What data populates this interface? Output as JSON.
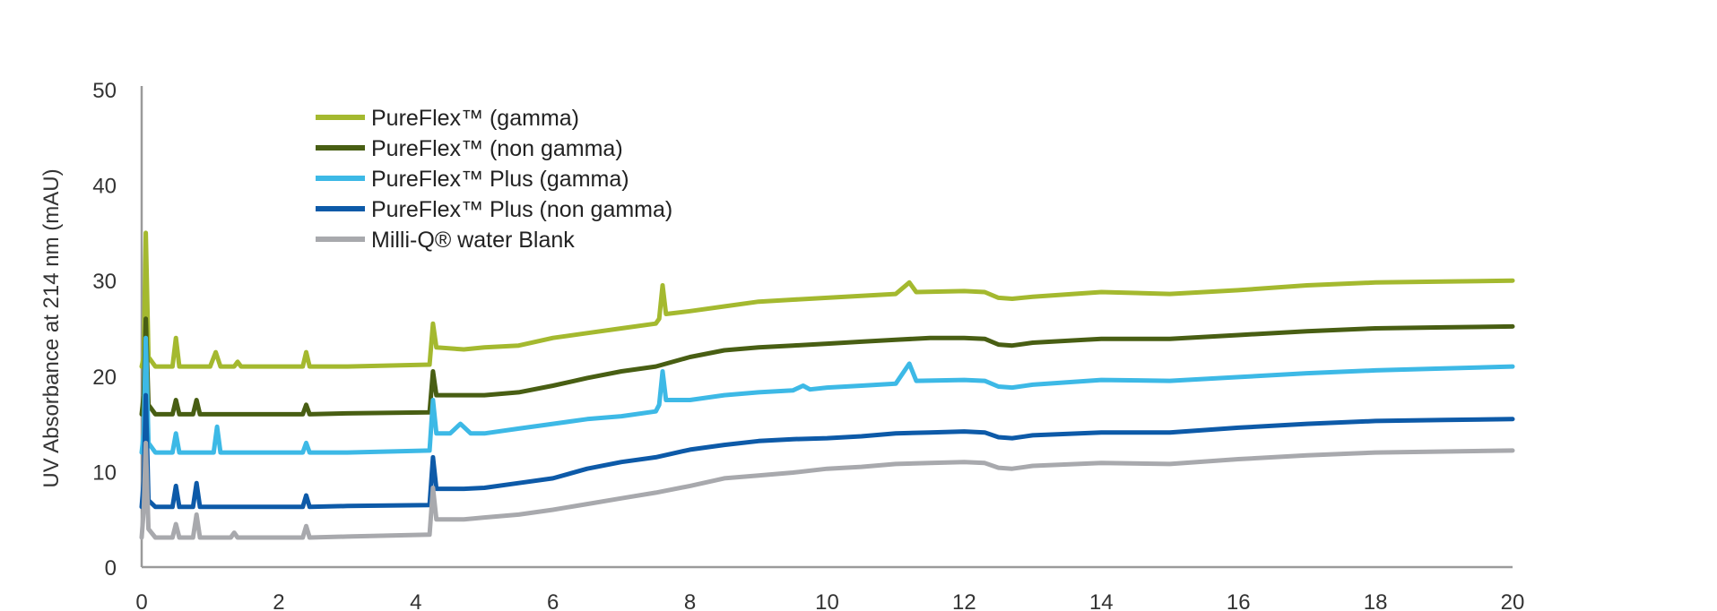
{
  "chart_data": {
    "type": "line",
    "title": "",
    "xlabel": "",
    "ylabel": "UV Absorbance at 214 nm (mAU)",
    "xlim": [
      0,
      20
    ],
    "ylim": [
      0,
      50
    ],
    "x_ticks": [
      "0",
      "2",
      "4",
      "6",
      "8",
      "10",
      "12",
      "14",
      "16",
      "18",
      "20"
    ],
    "y_ticks": [
      "0",
      "10",
      "20",
      "30",
      "40",
      "50"
    ],
    "grid": false,
    "legend_position": "top-left",
    "series": [
      {
        "name": "PureFlex™ (gamma)",
        "color": "#a4b92f",
        "points": [
          [
            0,
            21
          ],
          [
            0.03,
            22
          ],
          [
            0.06,
            35
          ],
          [
            0.1,
            22
          ],
          [
            0.2,
            21
          ],
          [
            0.45,
            21
          ],
          [
            0.5,
            24
          ],
          [
            0.55,
            21
          ],
          [
            1,
            21
          ],
          [
            1.08,
            22.5
          ],
          [
            1.15,
            21
          ],
          [
            1.35,
            21
          ],
          [
            1.4,
            21.5
          ],
          [
            1.45,
            21
          ],
          [
            2.35,
            21
          ],
          [
            2.4,
            22.5
          ],
          [
            2.45,
            21
          ],
          [
            3,
            21
          ],
          [
            4.2,
            21.2
          ],
          [
            4.25,
            25.5
          ],
          [
            4.3,
            23
          ],
          [
            4.7,
            22.8
          ],
          [
            5,
            23
          ],
          [
            5.5,
            23.2
          ],
          [
            6,
            24
          ],
          [
            6.5,
            24.5
          ],
          [
            7,
            25
          ],
          [
            7.5,
            25.5
          ],
          [
            7.55,
            26
          ],
          [
            7.6,
            29.5
          ],
          [
            7.65,
            26.5
          ],
          [
            8,
            26.8
          ],
          [
            8.5,
            27.3
          ],
          [
            9,
            27.8
          ],
          [
            9.5,
            28
          ],
          [
            10,
            28.2
          ],
          [
            10.5,
            28.4
          ],
          [
            11,
            28.6
          ],
          [
            11.2,
            29.8
          ],
          [
            11.3,
            28.8
          ],
          [
            12,
            28.9
          ],
          [
            12.3,
            28.8
          ],
          [
            12.5,
            28.2
          ],
          [
            12.7,
            28.1
          ],
          [
            13,
            28.3
          ],
          [
            14,
            28.8
          ],
          [
            15,
            28.6
          ],
          [
            16,
            29
          ],
          [
            17,
            29.5
          ],
          [
            18,
            29.8
          ],
          [
            19,
            29.9
          ],
          [
            20,
            30
          ]
        ]
      },
      {
        "name": "PureFlex™ (non gamma)",
        "color": "#485e13",
        "points": [
          [
            0,
            16
          ],
          [
            0.03,
            18
          ],
          [
            0.06,
            26
          ],
          [
            0.1,
            17
          ],
          [
            0.2,
            16
          ],
          [
            0.45,
            16
          ],
          [
            0.5,
            17.5
          ],
          [
            0.55,
            16
          ],
          [
            0.75,
            16
          ],
          [
            0.8,
            17.5
          ],
          [
            0.85,
            16
          ],
          [
            1.5,
            16
          ],
          [
            2.35,
            16
          ],
          [
            2.4,
            17
          ],
          [
            2.45,
            16
          ],
          [
            3,
            16.1
          ],
          [
            4.2,
            16.2
          ],
          [
            4.25,
            20.5
          ],
          [
            4.3,
            18
          ],
          [
            4.7,
            18
          ],
          [
            5,
            18
          ],
          [
            5.5,
            18.3
          ],
          [
            6,
            19
          ],
          [
            6.5,
            19.8
          ],
          [
            7,
            20.5
          ],
          [
            7.5,
            21
          ],
          [
            8,
            22
          ],
          [
            8.5,
            22.7
          ],
          [
            9,
            23
          ],
          [
            9.5,
            23.2
          ],
          [
            10,
            23.4
          ],
          [
            10.5,
            23.6
          ],
          [
            11,
            23.8
          ],
          [
            11.5,
            24
          ],
          [
            12,
            24
          ],
          [
            12.3,
            23.9
          ],
          [
            12.5,
            23.3
          ],
          [
            12.7,
            23.2
          ],
          [
            13,
            23.5
          ],
          [
            14,
            23.9
          ],
          [
            15,
            23.9
          ],
          [
            16,
            24.3
          ],
          [
            17,
            24.7
          ],
          [
            18,
            25
          ],
          [
            19,
            25.1
          ],
          [
            20,
            25.2
          ]
        ]
      },
      {
        "name": "PureFlex™ Plus (gamma)",
        "color": "#3db9e6",
        "points": [
          [
            0,
            12
          ],
          [
            0.03,
            14
          ],
          [
            0.06,
            24
          ],
          [
            0.1,
            13
          ],
          [
            0.2,
            12
          ],
          [
            0.45,
            12
          ],
          [
            0.5,
            14
          ],
          [
            0.55,
            12
          ],
          [
            1.05,
            12
          ],
          [
            1.1,
            14.7
          ],
          [
            1.15,
            12
          ],
          [
            2.35,
            12
          ],
          [
            2.4,
            13
          ],
          [
            2.45,
            12
          ],
          [
            3,
            12
          ],
          [
            4.2,
            12.2
          ],
          [
            4.25,
            17.5
          ],
          [
            4.3,
            14
          ],
          [
            4.5,
            14
          ],
          [
            4.65,
            15
          ],
          [
            4.8,
            14
          ],
          [
            5,
            14
          ],
          [
            5.5,
            14.5
          ],
          [
            6,
            15
          ],
          [
            6.5,
            15.5
          ],
          [
            7,
            15.8
          ],
          [
            7.5,
            16.3
          ],
          [
            7.55,
            17
          ],
          [
            7.6,
            20.5
          ],
          [
            7.65,
            17.5
          ],
          [
            8,
            17.5
          ],
          [
            8.5,
            18
          ],
          [
            9,
            18.3
          ],
          [
            9.5,
            18.5
          ],
          [
            9.65,
            19
          ],
          [
            9.75,
            18.6
          ],
          [
            10,
            18.8
          ],
          [
            10.5,
            19
          ],
          [
            11,
            19.2
          ],
          [
            11.2,
            21.3
          ],
          [
            11.3,
            19.5
          ],
          [
            12,
            19.6
          ],
          [
            12.3,
            19.5
          ],
          [
            12.5,
            18.9
          ],
          [
            12.7,
            18.8
          ],
          [
            13,
            19.1
          ],
          [
            14,
            19.6
          ],
          [
            15,
            19.5
          ],
          [
            16,
            19.9
          ],
          [
            17,
            20.3
          ],
          [
            18,
            20.6
          ],
          [
            19,
            20.8
          ],
          [
            20,
            21
          ]
        ]
      },
      {
        "name": "PureFlex™ Plus (non gamma)",
        "color": "#0d5aa8",
        "points": [
          [
            0,
            6.3
          ],
          [
            0.03,
            9
          ],
          [
            0.06,
            18
          ],
          [
            0.1,
            7
          ],
          [
            0.2,
            6.3
          ],
          [
            0.45,
            6.3
          ],
          [
            0.5,
            8.5
          ],
          [
            0.55,
            6.3
          ],
          [
            0.75,
            6.3
          ],
          [
            0.8,
            8.8
          ],
          [
            0.85,
            6.3
          ],
          [
            1.5,
            6.3
          ],
          [
            2.35,
            6.3
          ],
          [
            2.4,
            7.5
          ],
          [
            2.45,
            6.3
          ],
          [
            3,
            6.4
          ],
          [
            4.2,
            6.5
          ],
          [
            4.25,
            11.5
          ],
          [
            4.3,
            8.2
          ],
          [
            4.7,
            8.2
          ],
          [
            5,
            8.3
          ],
          [
            5.5,
            8.8
          ],
          [
            6,
            9.3
          ],
          [
            6.5,
            10.3
          ],
          [
            7,
            11
          ],
          [
            7.5,
            11.5
          ],
          [
            8,
            12.3
          ],
          [
            8.5,
            12.8
          ],
          [
            9,
            13.2
          ],
          [
            9.5,
            13.4
          ],
          [
            10,
            13.5
          ],
          [
            10.5,
            13.7
          ],
          [
            11,
            14
          ],
          [
            11.5,
            14.1
          ],
          [
            12,
            14.2
          ],
          [
            12.3,
            14.1
          ],
          [
            12.5,
            13.6
          ],
          [
            12.7,
            13.5
          ],
          [
            13,
            13.8
          ],
          [
            14,
            14.1
          ],
          [
            15,
            14.1
          ],
          [
            16,
            14.6
          ],
          [
            17,
            15
          ],
          [
            18,
            15.3
          ],
          [
            19,
            15.4
          ],
          [
            20,
            15.5
          ]
        ]
      },
      {
        "name": "Milli-Q® water Blank",
        "color": "#a8a9ad",
        "points": [
          [
            0,
            3.1
          ],
          [
            0.03,
            6
          ],
          [
            0.06,
            13
          ],
          [
            0.1,
            4
          ],
          [
            0.2,
            3.1
          ],
          [
            0.45,
            3.1
          ],
          [
            0.5,
            4.5
          ],
          [
            0.55,
            3.1
          ],
          [
            0.75,
            3.1
          ],
          [
            0.8,
            5.5
          ],
          [
            0.85,
            3.1
          ],
          [
            1.3,
            3.1
          ],
          [
            1.35,
            3.6
          ],
          [
            1.4,
            3.1
          ],
          [
            2.35,
            3.1
          ],
          [
            2.4,
            4.3
          ],
          [
            2.45,
            3.1
          ],
          [
            3,
            3.2
          ],
          [
            4.2,
            3.4
          ],
          [
            4.25,
            8.3
          ],
          [
            4.3,
            5
          ],
          [
            4.7,
            5
          ],
          [
            5,
            5.2
          ],
          [
            5.5,
            5.5
          ],
          [
            6,
            6
          ],
          [
            6.5,
            6.6
          ],
          [
            7,
            7.2
          ],
          [
            7.5,
            7.8
          ],
          [
            8,
            8.5
          ],
          [
            8.5,
            9.3
          ],
          [
            9,
            9.6
          ],
          [
            9.5,
            9.9
          ],
          [
            10,
            10.3
          ],
          [
            10.5,
            10.5
          ],
          [
            11,
            10.8
          ],
          [
            11.5,
            10.9
          ],
          [
            12,
            11
          ],
          [
            12.3,
            10.9
          ],
          [
            12.5,
            10.4
          ],
          [
            12.7,
            10.3
          ],
          [
            13,
            10.6
          ],
          [
            14,
            10.9
          ],
          [
            15,
            10.8
          ],
          [
            16,
            11.3
          ],
          [
            17,
            11.7
          ],
          [
            18,
            12
          ],
          [
            19,
            12.1
          ],
          [
            20,
            12.2
          ]
        ]
      }
    ]
  }
}
